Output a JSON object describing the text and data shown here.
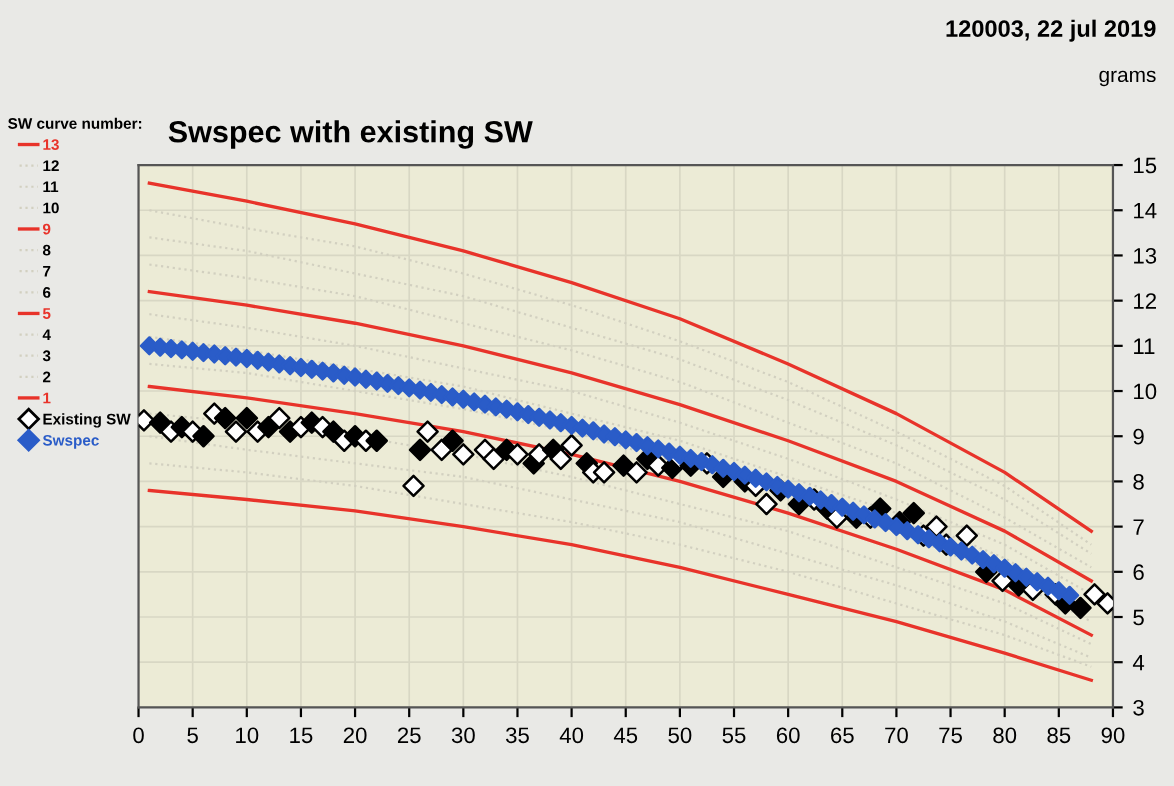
{
  "chart_data": {
    "type": "line",
    "title": "Swspec with existing SW",
    "subtitle": "120003, 22 jul 2019",
    "ylabel": "grams",
    "legend_title": "SW curve number:",
    "xlim": [
      0,
      90
    ],
    "xticks": [
      0,
      5,
      10,
      15,
      20,
      25,
      30,
      35,
      40,
      45,
      50,
      55,
      60,
      65,
      70,
      75,
      80,
      85,
      90
    ],
    "ylim": [
      3,
      15
    ],
    "yticks": [
      3,
      4,
      5,
      6,
      7,
      8,
      9,
      10,
      11,
      12,
      13,
      14,
      15
    ],
    "grid": true,
    "legend": "left",
    "series": [
      {
        "name": "13",
        "color": "#e8332a",
        "line_style": "solid",
        "x": [
          1,
          10,
          20,
          30,
          40,
          50,
          60,
          70,
          80,
          88
        ],
        "values": [
          14.6,
          14.2,
          13.7,
          13.1,
          12.4,
          11.6,
          10.6,
          9.5,
          8.2,
          6.9
        ]
      },
      {
        "name": "12",
        "color": "#d2d0c0",
        "line_style": "dotted",
        "x": [
          1,
          10,
          20,
          30,
          40,
          50,
          60,
          70,
          80,
          88
        ],
        "values": [
          14.0,
          13.6,
          13.2,
          12.6,
          11.9,
          11.1,
          10.2,
          9.1,
          7.9,
          6.6
        ]
      },
      {
        "name": "11",
        "color": "#d2d0c0",
        "line_style": "dotted",
        "x": [
          1,
          10,
          20,
          30,
          40,
          50,
          60,
          70,
          80,
          88
        ],
        "values": [
          13.4,
          13.1,
          12.6,
          12.1,
          11.4,
          10.7,
          9.8,
          8.8,
          7.6,
          6.4
        ]
      },
      {
        "name": "10",
        "color": "#d2d0c0",
        "line_style": "dotted",
        "x": [
          1,
          10,
          20,
          30,
          40,
          50,
          60,
          70,
          80,
          88
        ],
        "values": [
          12.8,
          12.5,
          12.1,
          11.5,
          10.9,
          10.2,
          9.3,
          8.4,
          7.2,
          6.1
        ]
      },
      {
        "name": "9",
        "color": "#e8332a",
        "line_style": "solid",
        "x": [
          1,
          10,
          20,
          30,
          40,
          50,
          60,
          70,
          80,
          88
        ],
        "values": [
          12.2,
          11.9,
          11.5,
          11.0,
          10.4,
          9.7,
          8.9,
          8.0,
          6.9,
          5.8
        ]
      },
      {
        "name": "8",
        "color": "#d2d0c0",
        "line_style": "dotted",
        "x": [
          1,
          10,
          20,
          30,
          40,
          50,
          60,
          70,
          80,
          88
        ],
        "values": [
          11.7,
          11.4,
          11.0,
          10.5,
          10.0,
          9.3,
          8.5,
          7.6,
          6.6,
          5.5
        ]
      },
      {
        "name": "7",
        "color": "#d2d0c0",
        "line_style": "dotted",
        "x": [
          1,
          10,
          20,
          30,
          40,
          50,
          60,
          70,
          80,
          88
        ],
        "values": [
          11.2,
          10.9,
          10.5,
          10.1,
          9.5,
          8.9,
          8.1,
          7.3,
          6.3,
          5.2
        ]
      },
      {
        "name": "6",
        "color": "#d2d0c0",
        "line_style": "dotted",
        "x": [
          1,
          10,
          20,
          30,
          40,
          50,
          60,
          70,
          80,
          88
        ],
        "values": [
          10.6,
          10.4,
          10.0,
          9.6,
          9.1,
          8.4,
          7.7,
          6.9,
          5.9,
          4.9
        ]
      },
      {
        "name": "5",
        "color": "#e8332a",
        "line_style": "solid",
        "x": [
          1,
          10,
          20,
          30,
          40,
          50,
          60,
          70,
          80,
          88
        ],
        "values": [
          10.1,
          9.85,
          9.5,
          9.1,
          8.6,
          8.0,
          7.3,
          6.5,
          5.6,
          4.6
        ]
      },
      {
        "name": "4",
        "color": "#d2d0c0",
        "line_style": "dotted",
        "x": [
          1,
          10,
          20,
          30,
          40,
          50,
          60,
          70,
          80,
          88
        ],
        "values": [
          9.5,
          9.3,
          9.0,
          8.6,
          8.1,
          7.5,
          6.9,
          6.1,
          5.3,
          4.4
        ]
      },
      {
        "name": "3",
        "color": "#d2d0c0",
        "line_style": "dotted",
        "x": [
          1,
          10,
          20,
          30,
          40,
          50,
          60,
          70,
          80,
          88
        ],
        "values": [
          9.0,
          8.7,
          8.4,
          8.1,
          7.6,
          7.1,
          6.4,
          5.7,
          4.9,
          4.1
        ]
      },
      {
        "name": "2",
        "color": "#d2d0c0",
        "line_style": "dotted",
        "x": [
          1,
          10,
          20,
          30,
          40,
          50,
          60,
          70,
          80,
          88
        ],
        "values": [
          8.4,
          8.2,
          7.9,
          7.5,
          7.1,
          6.6,
          6.0,
          5.3,
          4.6,
          3.9
        ]
      },
      {
        "name": "1",
        "color": "#e8332a",
        "line_style": "solid",
        "x": [
          1,
          10,
          20,
          30,
          40,
          50,
          60,
          70,
          80,
          88
        ],
        "values": [
          7.8,
          7.6,
          7.35,
          7.0,
          6.6,
          6.1,
          5.5,
          4.9,
          4.2,
          3.6
        ]
      },
      {
        "name": "Existing SW",
        "type": "scatter",
        "marker": "diamond",
        "color": "#ffffff",
        "x": [
          0.5,
          2,
          3,
          4,
          5,
          6,
          7,
          8,
          9,
          10,
          11,
          12,
          13,
          14,
          15,
          16,
          17,
          18,
          19,
          20,
          21,
          22,
          25.4,
          26,
          26.7,
          28,
          29,
          30,
          32,
          32.8,
          34,
          35,
          36.5,
          37,
          38.3,
          39,
          40,
          41.4,
          42,
          43,
          44.8,
          46,
          47,
          48,
          49.3,
          50,
          51,
          52.5,
          54,
          56,
          57,
          58,
          59.3,
          61,
          62.4,
          63.6,
          64.5,
          66.3,
          67.6,
          68.5,
          70.3,
          71.6,
          72.5,
          73.7,
          74.6,
          76.5,
          78.3,
          79.8,
          81.3,
          82.6,
          84.7,
          85.6,
          87,
          88.3,
          89.5
        ],
        "values": [
          9.35,
          9.3,
          9.1,
          9.2,
          9.1,
          9.0,
          9.5,
          9.4,
          9.1,
          9.4,
          9.1,
          9.2,
          9.4,
          9.1,
          9.2,
          9.3,
          9.2,
          9.1,
          8.9,
          9.0,
          8.9,
          8.9,
          7.9,
          8.7,
          9.1,
          8.7,
          8.9,
          8.6,
          8.7,
          8.5,
          8.7,
          8.6,
          8.4,
          8.6,
          8.7,
          8.5,
          8.8,
          8.4,
          8.2,
          8.2,
          8.35,
          8.2,
          8.5,
          8.35,
          8.3,
          8.5,
          8.35,
          8.4,
          8.1,
          8.0,
          7.9,
          7.5,
          7.8,
          7.5,
          7.6,
          7.4,
          7.2,
          7.2,
          7.2,
          7.4,
          7.1,
          7.3,
          6.8,
          7.0,
          6.6,
          6.8,
          6.0,
          5.8,
          5.7,
          5.6,
          5.5,
          5.3,
          5.2,
          5.5,
          5.3
        ],
        "colors": [
          "#ffffff",
          "#000000",
          "#ffffff",
          "#000000",
          "#ffffff",
          "#000000",
          "#ffffff",
          "#000000",
          "#ffffff",
          "#000000",
          "#ffffff",
          "#000000",
          "#ffffff",
          "#000000",
          "#ffffff",
          "#000000",
          "#ffffff",
          "#000000",
          "#ffffff",
          "#000000",
          "#ffffff",
          "#000000",
          "#ffffff",
          "#000000",
          "#ffffff",
          "#ffffff",
          "#000000",
          "#ffffff",
          "#ffffff",
          "#ffffff",
          "#000000",
          "#ffffff",
          "#000000",
          "#ffffff",
          "#000000",
          "#ffffff",
          "#ffffff",
          "#000000",
          "#ffffff",
          "#ffffff",
          "#000000",
          "#ffffff",
          "#000000",
          "#ffffff",
          "#000000",
          "#ffffff",
          "#000000",
          "#ffffff",
          "#000000",
          "#000000",
          "#ffffff",
          "#ffffff",
          "#000000",
          "#000000",
          "#ffffff",
          "#000000",
          "#ffffff",
          "#000000",
          "#ffffff",
          "#000000",
          "#000000",
          "#000000",
          "#ffffff",
          "#ffffff",
          "#ffffff",
          "#ffffff",
          "#000000",
          "#ffffff",
          "#000000",
          "#ffffff",
          "#ffffff",
          "#000000",
          "#000000",
          "#ffffff",
          "#ffffff"
        ]
      },
      {
        "name": "Swspec",
        "type": "scatter",
        "marker": "diamond",
        "color": "#2a5cc8",
        "x": [
          1,
          2,
          3,
          4,
          5,
          6,
          7,
          8,
          9,
          10,
          11,
          12,
          13,
          14,
          15,
          16,
          17,
          18,
          19,
          20,
          21,
          22,
          23,
          24,
          25,
          26,
          27,
          28,
          29,
          30,
          31,
          32,
          33,
          34,
          35,
          36,
          37,
          38,
          39,
          40,
          41,
          42,
          43,
          44,
          45,
          46,
          47,
          48,
          49,
          50,
          51,
          52,
          53,
          54,
          55,
          56,
          57,
          58,
          59,
          60,
          61,
          62,
          63,
          64,
          65,
          66,
          67,
          68,
          69,
          70,
          71,
          72,
          73,
          74,
          75,
          76,
          77,
          78,
          79,
          80,
          81,
          82,
          83,
          84,
          85,
          86
        ],
        "values": [
          11.0,
          10.97,
          10.94,
          10.91,
          10.88,
          10.85,
          10.82,
          10.78,
          10.75,
          10.72,
          10.68,
          10.64,
          10.6,
          10.56,
          10.52,
          10.48,
          10.44,
          10.4,
          10.35,
          10.31,
          10.26,
          10.22,
          10.17,
          10.12,
          10.07,
          10.02,
          9.97,
          9.92,
          9.87,
          9.82,
          9.76,
          9.71,
          9.65,
          9.6,
          9.54,
          9.48,
          9.42,
          9.36,
          9.3,
          9.24,
          9.18,
          9.12,
          9.05,
          8.99,
          8.92,
          8.86,
          8.79,
          8.72,
          8.65,
          8.58,
          8.51,
          8.44,
          8.37,
          8.29,
          8.22,
          8.14,
          8.07,
          7.99,
          7.91,
          7.83,
          7.75,
          7.67,
          7.59,
          7.51,
          7.43,
          7.34,
          7.26,
          7.17,
          7.09,
          7.0,
          6.91,
          6.82,
          6.73,
          6.64,
          6.55,
          6.46,
          6.37,
          6.27,
          6.18,
          6.08,
          5.98,
          5.88,
          5.78,
          5.68,
          5.58,
          5.48
        ]
      }
    ]
  }
}
